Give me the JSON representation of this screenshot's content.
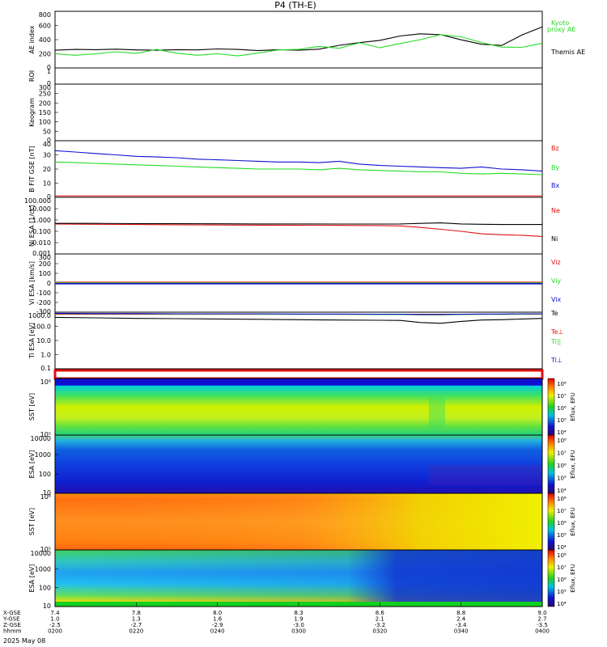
{
  "title": "P4 (TH-E)",
  "date_label": "2025 May 08",
  "colors": {
    "black": "#000000",
    "green": "#22dd22",
    "red": "#e01010",
    "blue": "#1010d0"
  },
  "chart_data": [
    {
      "type": "line",
      "panel": "ae",
      "ylabel": "AE index",
      "yticks": [
        "800",
        "600",
        "400",
        "200",
        "0"
      ],
      "ylim": [
        0,
        800
      ],
      "x": [
        0,
        1,
        2,
        3,
        4,
        5,
        6,
        7,
        8,
        9,
        10,
        11,
        12,
        13,
        14,
        15,
        16,
        17,
        18,
        19,
        20,
        21,
        22,
        23,
        24
      ],
      "series": [
        {
          "name": "Themis AE",
          "values": [
            250,
            262,
            258,
            265,
            255,
            250,
            258,
            255,
            268,
            262,
            245,
            258,
            250,
            265,
            320,
            358,
            390,
            452,
            482,
            470,
            398,
            335,
            318,
            465,
            580
          ]
        },
        {
          "name": "Kyoto proxy AE",
          "values": [
            200,
            180,
            200,
            228,
            205,
            262,
            208,
            180,
            200,
            170,
            210,
            255,
            262,
            305,
            278,
            355,
            285,
            345,
            400,
            470,
            440,
            360,
            295,
            292,
            350
          ]
        }
      ]
    },
    {
      "type": "line",
      "panel": "roi",
      "ylabel": "ROI",
      "yticks": [
        "1",
        "0"
      ],
      "ylim": [
        0,
        1
      ]
    },
    {
      "type": "line",
      "panel": "keogram",
      "ylabel": "Keogram",
      "yticks": [
        "300",
        "250",
        "200",
        "150",
        "100",
        "50",
        "0"
      ],
      "ylim": [
        0,
        300
      ]
    },
    {
      "type": "line",
      "panel": "bfield",
      "ylabel": "B FIT GSE [nT]",
      "yticks": [
        "40",
        "30",
        "20",
        "10",
        "0"
      ],
      "ylim": [
        0,
        40
      ],
      "x": [
        0,
        1,
        2,
        3,
        4,
        5,
        6,
        7,
        8,
        9,
        10,
        11,
        12,
        13,
        14,
        15,
        16,
        17,
        18,
        19,
        20,
        21,
        22,
        23,
        24
      ],
      "series": [
        {
          "name": "Bz",
          "values": [
            1,
            1,
            1,
            1,
            1,
            1,
            1,
            1,
            1,
            1,
            1,
            1,
            1,
            1,
            1,
            1,
            1,
            1,
            1,
            1,
            1,
            1,
            1,
            1,
            1
          ]
        },
        {
          "name": "By",
          "values": [
            25,
            24.5,
            24,
            23.5,
            23,
            22.5,
            22,
            21.5,
            21,
            20.5,
            20,
            20,
            20,
            19.5,
            20.5,
            19.5,
            19,
            18.5,
            18,
            18,
            17,
            16.5,
            17,
            16.5,
            16
          ]
        },
        {
          "name": "Bx",
          "values": [
            33,
            32,
            31,
            30,
            29,
            28.5,
            28,
            27,
            26.5,
            26,
            25.5,
            25,
            25,
            24.5,
            25.5,
            23.5,
            22.5,
            22,
            21.5,
            21,
            20.5,
            21.5,
            20,
            19.5,
            18.5
          ]
        }
      ]
    },
    {
      "type": "line",
      "panel": "density",
      "ylabel": "Ni ESA [1/cc]",
      "yticks": [
        "100.000",
        "10.000",
        "1.000",
        "0.100",
        "0.010",
        "0.001"
      ],
      "ylog": true,
      "ylim": [
        0.001,
        100
      ],
      "x": [
        0,
        2,
        4,
        6,
        8,
        10,
        12,
        14,
        16,
        17,
        18,
        19,
        20,
        21,
        22,
        23,
        24
      ],
      "series": [
        {
          "name": "Ne",
          "values": [
            0.45,
            0.42,
            0.4,
            0.38,
            0.36,
            0.35,
            0.34,
            0.33,
            0.32,
            0.3,
            0.22,
            0.15,
            0.1,
            0.06,
            0.05,
            0.045,
            0.035
          ]
        },
        {
          "name": "Ni",
          "values": [
            0.5,
            0.5,
            0.48,
            0.47,
            0.46,
            0.45,
            0.45,
            0.44,
            0.44,
            0.45,
            0.5,
            0.55,
            0.45,
            0.42,
            0.4,
            0.4,
            0.4
          ]
        }
      ]
    },
    {
      "type": "line",
      "panel": "velocity",
      "ylabel": "Vi ESA [km/s]",
      "yticks": [
        "300",
        "200",
        "100",
        "0",
        "-100",
        "-200",
        "-300"
      ],
      "ylim": [
        -300,
        300
      ],
      "series": [
        {
          "name": "Viz",
          "values": [
            0
          ]
        },
        {
          "name": "Viy",
          "values": [
            0
          ]
        },
        {
          "name": "Vix",
          "values": [
            0
          ]
        }
      ]
    },
    {
      "type": "line",
      "panel": "temperature",
      "ylabel": "Ti ESA [eV]",
      "yticks": [
        "1000.0",
        "100.0",
        "10.0",
        "1.0",
        "0.1"
      ],
      "ylog": true,
      "ylim": [
        0.05,
        3000
      ],
      "x": [
        0,
        2,
        4,
        6,
        8,
        10,
        12,
        14,
        16,
        17,
        18,
        19,
        20,
        21,
        22,
        23,
        24
      ],
      "series": [
        {
          "name": "Te",
          "values": [
            1100,
            1000,
            900,
            850,
            800,
            750,
            700,
            650,
            620,
            600,
            400,
            350,
            500,
            650,
            700,
            800,
            900
          ]
        },
        {
          "name": "Te⊥",
          "values": [
            2000,
            2000,
            2000,
            2000,
            2000,
            2000,
            2000,
            2000,
            2000,
            2000,
            2000,
            2000,
            2000,
            2000,
            2000,
            2000,
            2000
          ]
        },
        {
          "name": "Ti||",
          "values": [
            2300,
            2200,
            2200,
            2100,
            2100,
            2100,
            2000,
            2000,
            1900,
            1900,
            1800,
            1800,
            1900,
            2000,
            2000,
            2100,
            2100
          ]
        },
        {
          "name": "Ti⊥",
          "values": [
            2400,
            2300,
            2300,
            2200,
            2200,
            2200,
            2100,
            2100,
            2000,
            2000,
            1900,
            1900,
            2000,
            2100,
            2100,
            2200,
            2200
          ]
        }
      ]
    },
    {
      "type": "heatmap",
      "panel": "sst_electron",
      "ylabel": "SST [eV]",
      "yticks": [
        "10⁶",
        "10⁵"
      ],
      "colorbar_ticks": [
        "10⁸",
        "10⁷",
        "10⁶",
        "10⁵",
        "10⁴"
      ],
      "colorbar_label": "Eflux, EFU"
    },
    {
      "type": "heatmap",
      "panel": "esa_electron",
      "ylabel": "ESA [eV]",
      "yticks": [
        "10000",
        "1000",
        "100",
        "10"
      ],
      "colorbar_ticks": [
        "10⁸",
        "10⁷",
        "10⁶",
        "10⁵",
        "10⁴"
      ],
      "colorbar_label": "Eflux, EFU"
    },
    {
      "type": "heatmap",
      "panel": "sst_ion",
      "ylabel": "SST [eV]",
      "yticks": [
        "10⁶",
        "10⁵"
      ],
      "colorbar_ticks": [
        "10⁸",
        "10⁷",
        "10⁶",
        "10⁵",
        "10⁴"
      ],
      "colorbar_label": "Eflux, EFU"
    },
    {
      "type": "heatmap",
      "panel": "esa_ion",
      "ylabel": "ESA [eV]",
      "yticks": [
        "10000",
        "1000",
        "100",
        "10"
      ],
      "colorbar_ticks": [
        "10⁸",
        "10⁷",
        "10⁶",
        "10⁵",
        "10⁴"
      ],
      "colorbar_label": "Eflux, EFU"
    }
  ],
  "legends": {
    "ae": [
      "Kyoto",
      "proxy AE",
      "Themis AE"
    ],
    "bfield": [
      "Bz",
      "By",
      "Bx"
    ],
    "density": [
      "Ne",
      "Ni"
    ],
    "velocity": [
      "Viz",
      "Viy",
      "Vix"
    ],
    "temperature": [
      "Te",
      "Te⊥",
      "Ti||",
      "Ti⊥"
    ]
  },
  "orbit": {
    "row_labels": [
      "X-GSE",
      "Y-GSE",
      "Z-GSE",
      "hhmm"
    ],
    "columns": [
      [
        "7.4",
        "1.0",
        "-2.5",
        "0200"
      ],
      [
        "7.8",
        "1.3",
        "-2.7",
        "0220"
      ],
      [
        "8.0",
        "1.6",
        "-2.9",
        "0240"
      ],
      [
        "8.3",
        "1.9",
        "-3.0",
        "0300"
      ],
      [
        "8.6",
        "2.1",
        "-3.2",
        "0320"
      ],
      [
        "8.8",
        "2.4",
        "-3.4",
        "0340"
      ],
      [
        "9.0",
        "2.7",
        "-3.5",
        "0400"
      ]
    ]
  }
}
